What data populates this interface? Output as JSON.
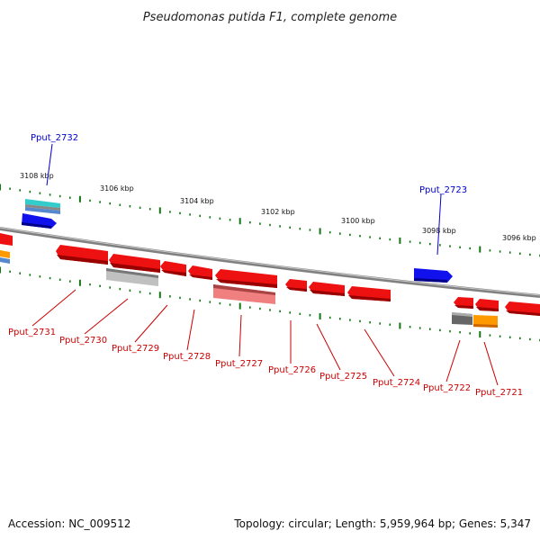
{
  "title": "Pseudomonas putida F1, complete genome",
  "kbp_ticks": [
    "3108 kbp",
    "3106 kbp",
    "3104 kbp",
    "3102 kbp",
    "3100 kbp",
    "3098 kbp",
    "3096 kbp"
  ],
  "genes_forward": [
    "Pput_2732",
    "Pput_2723"
  ],
  "genes_reverse": [
    "Pput_2731",
    "Pput_2730",
    "Pput_2729",
    "Pput_2728",
    "Pput_2727",
    "Pput_2726",
    "Pput_2725",
    "Pput_2724",
    "Pput_2722",
    "Pput_2721"
  ],
  "footer": {
    "accession": "Accession: NC_009512",
    "summary": "Topology: circular; Length: 5,959,964 bp; Genes: 5,347"
  },
  "colors": {
    "forward_label": "#0000cc",
    "reverse_label": "#cc0000",
    "gene_red": "#ee1111",
    "gene_blue": "#1111ee",
    "gene_orange": "#ff9900",
    "gene_gray": "#999999",
    "gene_pink": "#f08080",
    "gene_cyan": "#33bbbb",
    "tick_green": "#117711",
    "backbone": "#808080"
  }
}
